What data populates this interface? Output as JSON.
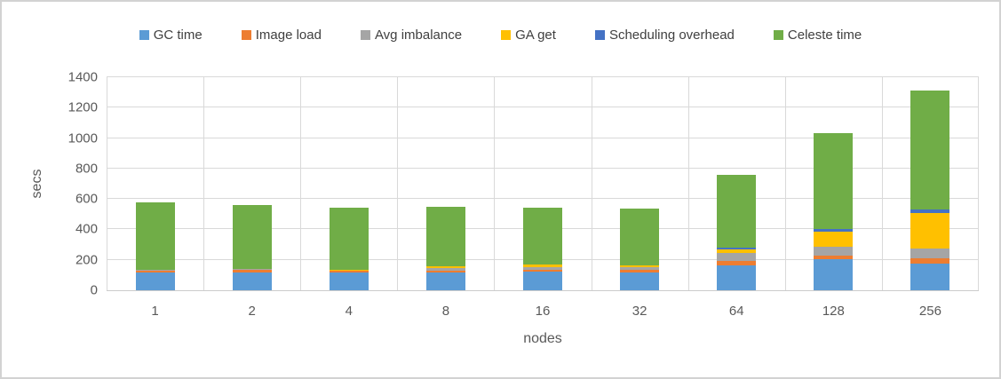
{
  "chart_data": {
    "type": "bar",
    "stacked": true,
    "title": "",
    "xlabel": "nodes",
    "ylabel": "secs",
    "categories": [
      "1",
      "2",
      "4",
      "8",
      "16",
      "32",
      "64",
      "128",
      "256"
    ],
    "series": [
      {
        "name": "GC time",
        "color": "#5B9BD5",
        "values": [
          115,
          118,
          115,
          115,
          120,
          118,
          165,
          205,
          178
        ]
      },
      {
        "name": "Image load",
        "color": "#ED7D31",
        "values": [
          18,
          16,
          15,
          16,
          16,
          15,
          28,
          25,
          30
        ]
      },
      {
        "name": "Avg imbalance",
        "color": "#A5A5A5",
        "values": [
          3,
          4,
          5,
          14,
          17,
          18,
          50,
          55,
          65
        ]
      },
      {
        "name": "GA get",
        "color": "#FFC000",
        "values": [
          0,
          0,
          2,
          12,
          14,
          14,
          28,
          100,
          232
        ]
      },
      {
        "name": "Scheduling overhead",
        "color": "#4472C4",
        "values": [
          0,
          0,
          0,
          0,
          0,
          0,
          12,
          17,
          25
        ]
      },
      {
        "name": "Celeste time",
        "color": "#70AD47",
        "values": [
          442,
          424,
          403,
          393,
          378,
          370,
          477,
          628,
          785
        ]
      }
    ],
    "totals": [
      578,
      562,
      540,
      550,
      545,
      535,
      760,
      1030,
      1315
    ],
    "ylim": [
      0,
      1400
    ],
    "yticks": [
      0,
      200,
      400,
      600,
      800,
      1000,
      1200,
      1400
    ],
    "grid": true,
    "legend_position": "top",
    "colors": {
      "gridline": "#d9d9d9",
      "tick_text": "#595959",
      "legend_text": "#404040",
      "frame_border": "#d2d2d2"
    }
  }
}
